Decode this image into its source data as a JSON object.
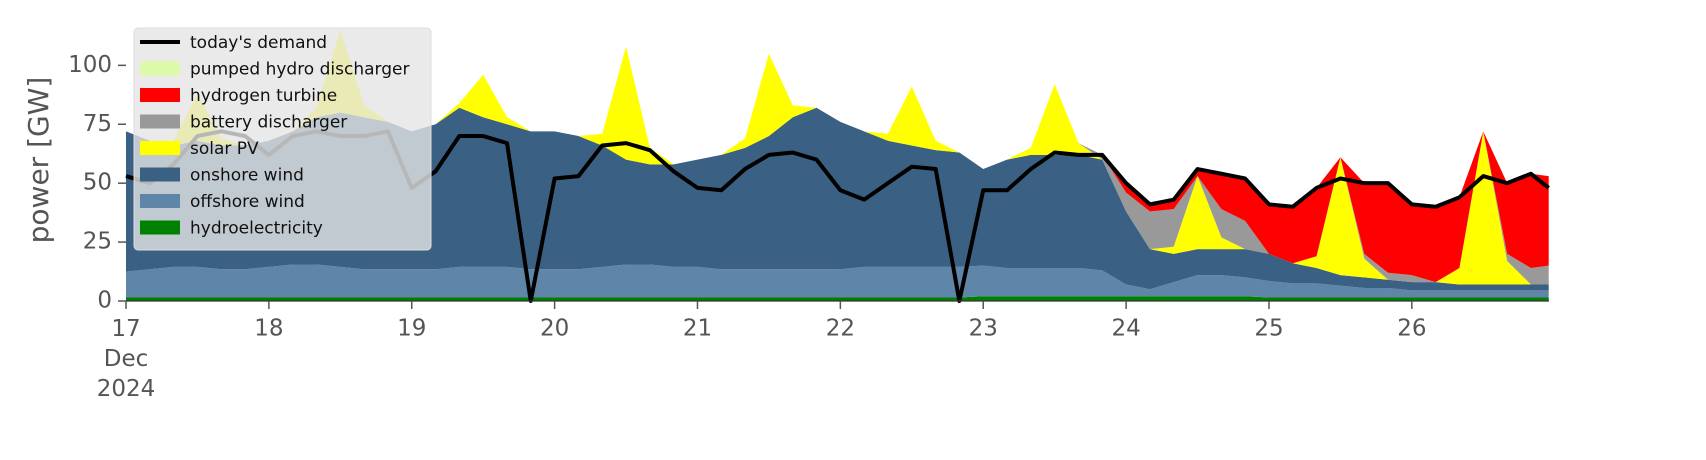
{
  "chart_data": {
    "type": "stacked-area",
    "y_label": "power [GW]",
    "x": [
      17,
      17.167,
      17.333,
      17.5,
      17.667,
      17.833,
      18,
      18.167,
      18.333,
      18.5,
      18.667,
      18.833,
      19,
      19.167,
      19.333,
      19.5,
      19.667,
      19.833,
      20,
      20.167,
      20.333,
      20.5,
      20.667,
      20.833,
      21,
      21.167,
      21.333,
      21.5,
      21.667,
      21.833,
      22,
      22.167,
      22.333,
      22.5,
      22.667,
      22.833,
      23,
      23.167,
      23.333,
      23.5,
      23.667,
      23.833,
      24,
      24.167,
      24.333,
      24.5,
      24.667,
      24.833,
      25,
      25.167,
      25.333,
      25.5,
      25.667,
      25.833,
      26,
      26.167,
      26.333,
      26.5,
      26.667,
      26.833,
      26.958
    ],
    "xlim": [
      17,
      26.96
    ],
    "xticks": [
      {
        "value": 17,
        "label": "17 Dec 2024"
      },
      18,
      19,
      20,
      21,
      22,
      23,
      24,
      25,
      26
    ],
    "ylim": [
      0,
      115
    ],
    "yticks": [
      0,
      25,
      50,
      75,
      100
    ],
    "legend": "upper left",
    "series": [
      {
        "name": "hydroelectricity",
        "color": "#008000",
        "type": "area",
        "values": [
          1.5,
          1.5,
          1.5,
          1.5,
          1.5,
          1.5,
          1.5,
          1.5,
          1.5,
          1.5,
          1.5,
          1.5,
          1.5,
          1.5,
          1.5,
          1.5,
          1.5,
          1.5,
          1.5,
          1.5,
          1.5,
          1.5,
          1.5,
          1.5,
          1.5,
          1.5,
          1.5,
          1.5,
          1.5,
          1.5,
          1.5,
          1.5,
          1.5,
          1.5,
          1.5,
          1.5,
          2,
          2,
          2,
          2,
          2,
          2,
          2,
          2,
          2,
          2,
          2,
          2,
          1.5,
          1.5,
          1.5,
          1.5,
          1.5,
          1.5,
          1.5,
          1.5,
          1.5,
          1.5,
          1.5,
          1.5,
          1.5
        ]
      },
      {
        "name": "offshore wind",
        "color": "#5f85a8",
        "type": "area",
        "values": [
          11,
          12,
          13,
          13,
          12,
          12,
          13,
          14,
          14,
          13,
          12,
          12,
          12,
          12,
          13,
          13,
          13,
          12,
          12,
          12,
          13,
          14,
          14,
          13,
          13,
          12,
          12,
          12,
          12,
          12,
          12,
          13,
          13,
          13,
          13,
          13,
          13,
          12,
          12,
          12,
          12,
          11,
          5,
          3,
          6,
          9,
          9,
          8,
          7,
          6,
          6,
          5,
          4,
          4,
          3,
          3,
          3,
          3,
          3,
          3,
          3
        ]
      },
      {
        "name": "onshore wind",
        "color": "#3a6183",
        "type": "area",
        "values": [
          59.5,
          54.5,
          51.5,
          53.5,
          52.5,
          52.5,
          53.5,
          56.5,
          62.5,
          65.5,
          64.5,
          62.5,
          58.5,
          61.5,
          67.5,
          63.5,
          60.5,
          58.5,
          58.5,
          56.5,
          51.5,
          44.5,
          42.5,
          43.5,
          45.5,
          48.5,
          51.5,
          56.5,
          64.5,
          68.5,
          62.5,
          57.5,
          53.5,
          51.5,
          49.5,
          48.5,
          41,
          46,
          48,
          48,
          48,
          47,
          31,
          17,
          12,
          11,
          11,
          12,
          11.5,
          8.5,
          6.5,
          4.5,
          4.5,
          3.5,
          3.5,
          3.5,
          2.5,
          2.5,
          2.5,
          2.5,
          2.5
        ]
      },
      {
        "name": "solar PV",
        "color": "#ffff00",
        "type": "area",
        "values": [
          0,
          0,
          2,
          20,
          3,
          0,
          0,
          0,
          4,
          35,
          5,
          0,
          0,
          0,
          2,
          18,
          3,
          0,
          0,
          0,
          5,
          48,
          7,
          0,
          0,
          0,
          4,
          35,
          5,
          0,
          0,
          0,
          3,
          25,
          4,
          0,
          0,
          0,
          3,
          30,
          5,
          0,
          0,
          0,
          3,
          31,
          5,
          0,
          0,
          0,
          5,
          50,
          8,
          0,
          0,
          0,
          7,
          65,
          10,
          0,
          0
        ]
      },
      {
        "name": "battery discharger",
        "color": "#999999",
        "type": "area",
        "values": [
          0,
          0,
          0,
          0,
          0,
          0,
          0,
          0,
          0,
          0,
          0,
          0,
          0,
          0,
          0,
          0,
          0,
          0,
          0,
          0,
          0,
          0,
          0,
          0,
          0,
          0,
          0,
          0,
          0,
          0,
          0,
          0,
          0,
          0,
          0,
          0,
          0,
          0,
          0,
          0,
          0,
          2,
          8,
          16,
          16,
          0,
          12,
          12,
          0,
          0,
          0,
          0,
          2,
          3,
          3,
          0,
          0,
          0,
          3,
          7,
          8
        ]
      },
      {
        "name": "hydrogen turbine",
        "color": "#ff0000",
        "type": "area",
        "values": [
          0,
          0,
          0,
          0,
          0,
          0,
          0,
          0,
          0,
          0,
          0,
          0,
          0,
          0,
          0,
          0,
          0,
          0,
          0,
          0,
          0,
          0,
          0,
          0,
          0,
          0,
          0,
          0,
          0,
          0,
          0,
          0,
          0,
          0,
          0,
          0,
          0,
          0,
          0,
          0,
          0,
          0,
          4,
          3,
          4,
          3,
          15,
          18,
          21,
          24,
          29,
          0,
          30,
          38,
          30,
          32,
          30,
          0,
          30,
          40,
          38
        ]
      },
      {
        "name": "pumped hydro discharger",
        "color": "#ddfaa8",
        "type": "area",
        "values": [
          0,
          0,
          0,
          0,
          0,
          0,
          0,
          0,
          0,
          0,
          0,
          0,
          0,
          0,
          0,
          0,
          0,
          0,
          0,
          0,
          0,
          0,
          0,
          0,
          0,
          0,
          0,
          0,
          0,
          0,
          0,
          0,
          0,
          0,
          0,
          0,
          0,
          0,
          0,
          0,
          0,
          0,
          0,
          1,
          0,
          0,
          0,
          0,
          0,
          0,
          0,
          0,
          0,
          0,
          0,
          0,
          0,
          0,
          0,
          0,
          0
        ]
      },
      {
        "name": "today's demand",
        "color": "#000000",
        "type": "line",
        "values": [
          53,
          50,
          58,
          70,
          72,
          70,
          62,
          70,
          72,
          70,
          70,
          72,
          48,
          55,
          70,
          70,
          67,
          0,
          52,
          53,
          66,
          67,
          64,
          55,
          48,
          47,
          56,
          62,
          63,
          60,
          47,
          43,
          50,
          57,
          56,
          0,
          47,
          47,
          56,
          63,
          62,
          62,
          50,
          41,
          43,
          56,
          54,
          52,
          41,
          40,
          48,
          52,
          50,
          50,
          41,
          40,
          44,
          53,
          50,
          54,
          48
        ]
      }
    ]
  }
}
